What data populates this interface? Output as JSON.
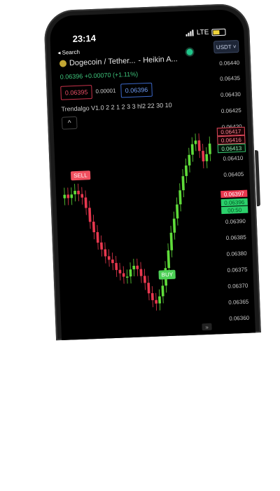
{
  "status": {
    "time": "23:14",
    "network": "LTE"
  },
  "nav": {
    "back_label": "◂ Search"
  },
  "header": {
    "title": "Dogecoin / Tether...",
    "chart_type": "- Heikin A...",
    "currency": "USDT",
    "price": "0.06396",
    "change": "+0.00070",
    "change_pct": "(+1.11%)",
    "sell_price": "0.06395",
    "spread": "0.00001",
    "buy_price": "0.06396",
    "indicator": "Trendalgo V1.0  2 2 1 2 3 3 hl2 22 30 10",
    "collapse_glyph": "^"
  },
  "axis": {
    "ticks": [
      "0.06440",
      "0.06435",
      "0.06430",
      "0.06425",
      "0.06420",
      "0.06410",
      "0.06405",
      "0.06390",
      "0.06385",
      "0.06380",
      "0.06375",
      "0.06370",
      "0.06365",
      "0.06360"
    ],
    "labels": {
      "l1": "0.06417",
      "l2": "0.06416",
      "l3": "0.06413",
      "current_red": "0.06397",
      "current_green": "0.06396",
      "countdown": "00:50"
    }
  },
  "signals": {
    "sell": "SELL",
    "buy": "BUY"
  },
  "colors": {
    "up": "#5fdc3a",
    "down": "#e8384f",
    "accent": "#1fc68a"
  },
  "chart_data": {
    "type": "candlestick",
    "series_style": "heikin-ashi",
    "ylim": [
      0.0636,
      0.0644
    ],
    "candles": [
      {
        "o": 0.06402,
        "c": 0.06403
      },
      {
        "o": 0.06403,
        "c": 0.06402
      },
      {
        "o": 0.06402,
        "c": 0.06403
      },
      {
        "o": 0.06403,
        "c": 0.06404
      },
      {
        "o": 0.06404,
        "c": 0.06403
      },
      {
        "o": 0.06403,
        "c": 0.06402
      },
      {
        "o": 0.06402,
        "c": 0.06399
      },
      {
        "o": 0.06399,
        "c": 0.06395
      },
      {
        "o": 0.06395,
        "c": 0.06392
      },
      {
        "o": 0.06392,
        "c": 0.06389
      },
      {
        "o": 0.06389,
        "c": 0.06387
      },
      {
        "o": 0.06387,
        "c": 0.06385
      },
      {
        "o": 0.06385,
        "c": 0.06384
      },
      {
        "o": 0.06384,
        "c": 0.06383
      },
      {
        "o": 0.06383,
        "c": 0.06381
      },
      {
        "o": 0.06381,
        "c": 0.0638
      },
      {
        "o": 0.0638,
        "c": 0.06379
      },
      {
        "o": 0.06379,
        "c": 0.06379
      },
      {
        "o": 0.06379,
        "c": 0.06381
      },
      {
        "o": 0.06381,
        "c": 0.06382
      },
      {
        "o": 0.06382,
        "c": 0.06381
      },
      {
        "o": 0.06381,
        "c": 0.06379
      },
      {
        "o": 0.06379,
        "c": 0.06377
      },
      {
        "o": 0.06377,
        "c": 0.06374
      },
      {
        "o": 0.06374,
        "c": 0.06372
      },
      {
        "o": 0.06372,
        "c": 0.06371
      },
      {
        "o": 0.06371,
        "c": 0.06373
      },
      {
        "o": 0.06373,
        "c": 0.06376
      },
      {
        "o": 0.06376,
        "c": 0.06381
      },
      {
        "o": 0.06381,
        "c": 0.06386
      },
      {
        "o": 0.06386,
        "c": 0.06391
      },
      {
        "o": 0.06391,
        "c": 0.06395
      },
      {
        "o": 0.06395,
        "c": 0.06399
      },
      {
        "o": 0.06399,
        "c": 0.06403
      },
      {
        "o": 0.06403,
        "c": 0.06407
      },
      {
        "o": 0.06407,
        "c": 0.0641
      },
      {
        "o": 0.0641,
        "c": 0.06413
      },
      {
        "o": 0.06413,
        "c": 0.06416
      },
      {
        "o": 0.06416,
        "c": 0.06417
      },
      {
        "o": 0.06417,
        "c": 0.06414
      },
      {
        "o": 0.06414,
        "c": 0.06411
      },
      {
        "o": 0.06411,
        "c": 0.06413
      },
      {
        "o": 0.06413,
        "c": 0.06416
      }
    ]
  }
}
